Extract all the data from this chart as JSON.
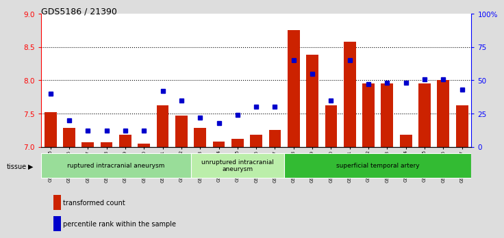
{
  "title": "GDS5186 / 21390",
  "samples": [
    "GSM1306885",
    "GSM1306886",
    "GSM1306887",
    "GSM1306888",
    "GSM1306889",
    "GSM1306890",
    "GSM1306891",
    "GSM1306892",
    "GSM1306893",
    "GSM1306894",
    "GSM1306895",
    "GSM1306896",
    "GSM1306897",
    "GSM1306898",
    "GSM1306899",
    "GSM1306900",
    "GSM1306901",
    "GSM1306902",
    "GSM1306903",
    "GSM1306904",
    "GSM1306905",
    "GSM1306906",
    "GSM1306907"
  ],
  "bar_values": [
    7.52,
    7.28,
    7.07,
    7.07,
    7.18,
    7.05,
    7.62,
    7.47,
    7.28,
    7.08,
    7.12,
    7.18,
    7.25,
    8.76,
    8.39,
    7.62,
    8.58,
    7.95,
    7.95,
    7.18,
    7.95,
    8.0,
    7.62
  ],
  "percentile_values": [
    40,
    20,
    12,
    12,
    12,
    12,
    42,
    35,
    22,
    18,
    24,
    30,
    30,
    65,
    55,
    35,
    65,
    47,
    48,
    48,
    51,
    51,
    43
  ],
  "ylim_left": [
    7.0,
    9.0
  ],
  "ylim_right": [
    0,
    100
  ],
  "bar_color": "#cc2200",
  "dot_color": "#0000cc",
  "background_color": "#dddddd",
  "plot_bg_color": "#ffffff",
  "yticks_left": [
    7.0,
    7.5,
    8.0,
    8.5,
    9.0
  ],
  "yticks_right": [
    0,
    25,
    50,
    75,
    100
  ],
  "right_tick_labels": [
    "0",
    "25",
    "50",
    "75",
    "100%"
  ],
  "group_ranges": [
    {
      "start": 0,
      "end": 7,
      "label": "ruptured intracranial aneurysm",
      "color": "#99dd99"
    },
    {
      "start": 8,
      "end": 12,
      "label": "unruptured intracranial\naneurysm",
      "color": "#bbeeaa"
    },
    {
      "start": 13,
      "end": 22,
      "label": "superficial temporal artery",
      "color": "#33bb33"
    }
  ]
}
